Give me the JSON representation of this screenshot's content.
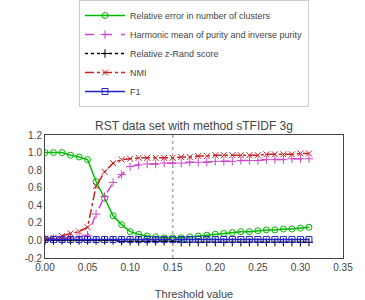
{
  "chart_data": {
    "type": "line",
    "title": "RST data set with method sTFIDF 3g",
    "xlabel": "Threshold value",
    "x": [
      0.0,
      0.01,
      0.02,
      0.03,
      0.04,
      0.05,
      0.06,
      0.07,
      0.08,
      0.09,
      0.1,
      0.11,
      0.12,
      0.13,
      0.14,
      0.15,
      0.16,
      0.17,
      0.18,
      0.19,
      0.2,
      0.21,
      0.22,
      0.23,
      0.24,
      0.25,
      0.26,
      0.27,
      0.28,
      0.29,
      0.3,
      0.31
    ],
    "series": [
      {
        "name": "Relative error in number of clusters",
        "color": "#00bb00",
        "marker": "circle-open",
        "line_style": "solid",
        "values": [
          1.0,
          1.0,
          1.0,
          0.97,
          0.95,
          0.92,
          0.67,
          0.48,
          0.28,
          0.18,
          0.1,
          0.07,
          0.05,
          0.04,
          0.03,
          0.03,
          0.03,
          0.04,
          0.05,
          0.06,
          0.07,
          0.08,
          0.09,
          0.1,
          0.1,
          0.11,
          0.12,
          0.12,
          0.13,
          0.13,
          0.14,
          0.15
        ]
      },
      {
        "name": "Harmonic mean of purity and inverse purity",
        "color": "#cc44cc",
        "marker": "plus",
        "line_style": "dashed",
        "values": [
          0.02,
          0.02,
          0.02,
          0.03,
          0.04,
          0.06,
          0.3,
          0.5,
          0.66,
          0.75,
          0.84,
          0.86,
          0.87,
          0.87,
          0.88,
          0.88,
          0.88,
          0.89,
          0.89,
          0.89,
          0.9,
          0.9,
          0.9,
          0.91,
          0.91,
          0.91,
          0.92,
          0.92,
          0.92,
          0.93,
          0.93,
          0.93
        ]
      },
      {
        "name": "Relative z-Rand score",
        "color": "#000000",
        "marker": "plus",
        "line_style": "dotted",
        "values": [
          0.0,
          0.0,
          0.0,
          0.0,
          0.0,
          0.0,
          0.0,
          0.0,
          0.0,
          -0.01,
          -0.01,
          -0.01,
          -0.01,
          -0.01,
          -0.01,
          -0.01,
          -0.02,
          -0.02,
          -0.02,
          -0.02,
          -0.02,
          -0.02,
          -0.02,
          -0.02,
          -0.02,
          -0.02,
          -0.02,
          -0.02,
          -0.02,
          -0.02,
          -0.02,
          -0.02
        ]
      },
      {
        "name": "NMI",
        "color": "#cc2222",
        "marker": "x",
        "line_style": "dashdot",
        "values": [
          0.02,
          0.03,
          0.05,
          0.08,
          0.1,
          0.15,
          0.62,
          0.78,
          0.88,
          0.92,
          0.93,
          0.94,
          0.94,
          0.94,
          0.94,
          0.94,
          0.95,
          0.95,
          0.96,
          0.96,
          0.97,
          0.97,
          0.97,
          0.97,
          0.97,
          0.97,
          0.98,
          0.98,
          0.98,
          0.98,
          0.99,
          0.99
        ]
      },
      {
        "name": "F1",
        "color": "#2222cc",
        "marker": "square-open",
        "line_style": "solid",
        "values": [
          0.01,
          0.01,
          0.01,
          0.01,
          0.01,
          0.01,
          0.01,
          0.01,
          0.01,
          0.01,
          0.01,
          0.01,
          0.01,
          0.01,
          0.01,
          0.01,
          0.01,
          0.01,
          0.01,
          0.01,
          0.01,
          0.01,
          0.01,
          0.01,
          0.01,
          0.01,
          0.01,
          0.01,
          0.01,
          0.01,
          0.01,
          0.01
        ]
      }
    ],
    "vlines": [
      {
        "x": 0.15,
        "color": "#aaaaaa",
        "line_style": "dotted"
      }
    ],
    "xlim": [
      0,
      0.35
    ],
    "ylim": [
      -0.2,
      1.2
    ],
    "xticks": [
      {
        "value": 0,
        "label": "0.00"
      },
      0.05,
      {
        "value": 0.1,
        "label": "0.10"
      },
      0.15,
      {
        "value": 0.2,
        "label": "0.20"
      },
      0.25,
      {
        "value": 0.3,
        "label": "0.30"
      },
      0.35
    ],
    "yticks": [
      -0.2,
      {
        "value": 0,
        "label": "0.0"
      },
      0.2,
      0.4,
      0.6,
      0.8,
      {
        "value": 1.0,
        "label": "1.0"
      },
      1.2
    ],
    "grid": false,
    "legend": "top"
  }
}
